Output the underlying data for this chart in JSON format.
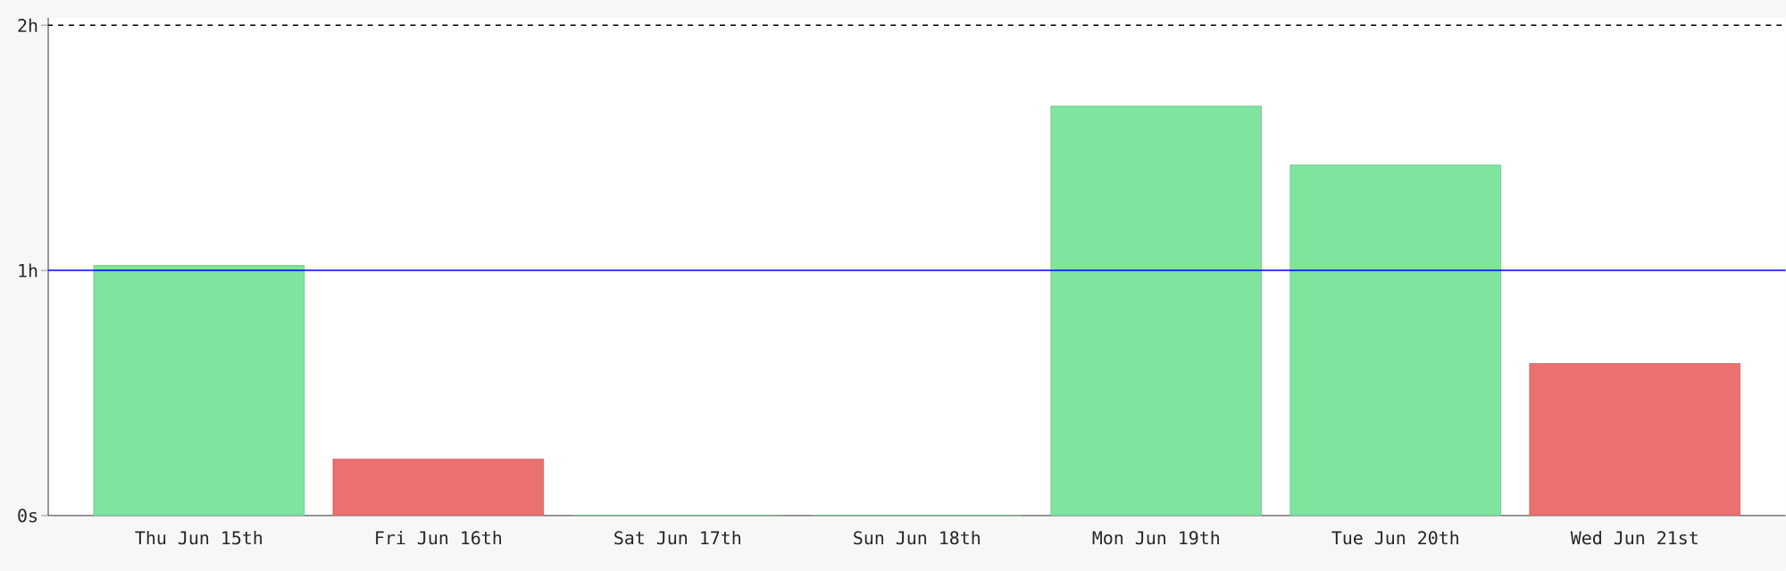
{
  "chart_data": {
    "type": "bar",
    "categories": [
      "Thu Jun 15th",
      "Fri Jun 16th",
      "Sat Jun 17th",
      "Sun Jun 18th",
      "Mon Jun 19th",
      "Tue Jun 20th",
      "Wed Jun 21st"
    ],
    "values": [
      1.02,
      0.23,
      0,
      0,
      1.67,
      1.43,
      0.62
    ],
    "colors": [
      "#7ee49e",
      "#eb7070",
      "#7ee49e",
      "#7ee49e",
      "#7ee49e",
      "#7ee49e",
      "#eb7070"
    ],
    "ylim": [
      0,
      2.03
    ],
    "yticks": [
      {
        "value": 0,
        "label": "0s"
      },
      {
        "value": 1,
        "label": "1h"
      },
      {
        "value": 2,
        "label": "2h"
      }
    ],
    "ref_lines": [
      {
        "axis": "y",
        "value": 1,
        "color": "#0000ff",
        "line_style": "solid"
      },
      {
        "axis": "y",
        "value": 2,
        "color": "#000000",
        "line_style": "dashed"
      }
    ]
  }
}
